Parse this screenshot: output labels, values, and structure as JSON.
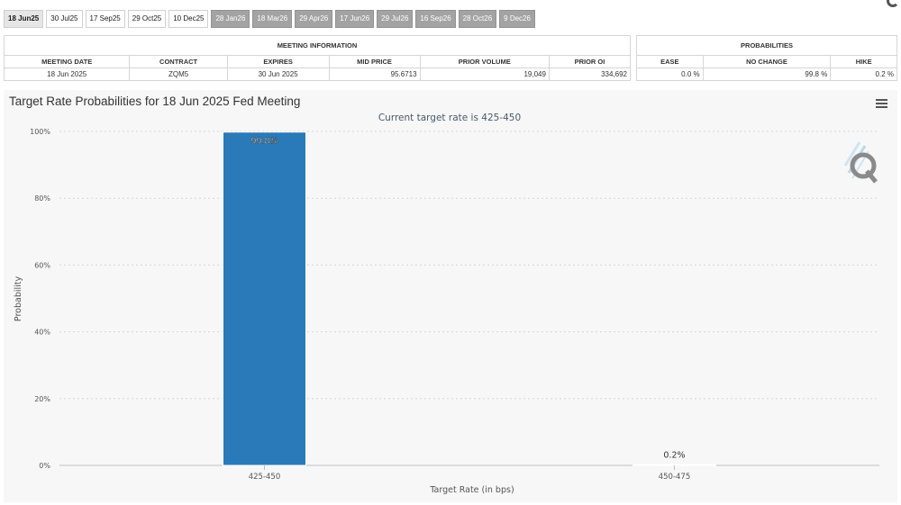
{
  "tabs": [
    {
      "label": "18 Jun25",
      "state": "active"
    },
    {
      "label": "30 Jul25",
      "state": "normal"
    },
    {
      "label": "17 Sep25",
      "state": "normal"
    },
    {
      "label": "29 Oct25",
      "state": "normal"
    },
    {
      "label": "10 Dec25",
      "state": "normal"
    },
    {
      "label": "28 Jan26",
      "state": "future"
    },
    {
      "label": "18 Mar26",
      "state": "future"
    },
    {
      "label": "29 Apr26",
      "state": "future"
    },
    {
      "label": "17 Jun26",
      "state": "future"
    },
    {
      "label": "29 Jul26",
      "state": "future"
    },
    {
      "label": "16 Sep26",
      "state": "future"
    },
    {
      "label": "28 Oct26",
      "state": "future"
    },
    {
      "label": "9 Dec26",
      "state": "future"
    }
  ],
  "meeting_info": {
    "header": "MEETING INFORMATION",
    "columns": [
      "MEETING DATE",
      "CONTRACT",
      "EXPIRES",
      "MID PRICE",
      "PRIOR VOLUME",
      "PRIOR OI"
    ],
    "row": [
      "18 Jun 2025",
      "ZQM5",
      "30 Jun 2025",
      "95.6713",
      "19,049",
      "334,692"
    ]
  },
  "probabilities": {
    "header": "PROBABILITIES",
    "columns": [
      "EASE",
      "NO CHANGE",
      "HIKE"
    ],
    "row": [
      "0.0 %",
      "99.8 %",
      "0.2 %"
    ]
  },
  "chart_data": {
    "type": "bar",
    "title": "Target Rate Probabilities for 18 Jun 2025 Fed Meeting",
    "subtitle": "Current target rate is 425-450",
    "xlabel": "Target Rate (in bps)",
    "ylabel": "Probability",
    "categories": [
      "425-450",
      "450-475"
    ],
    "values": [
      99.8,
      0.2
    ],
    "data_labels": [
      "99.8%",
      "0.2%"
    ],
    "yticks": [
      "0%",
      "20%",
      "40%",
      "60%",
      "80%",
      "100%"
    ],
    "ylim": [
      0,
      100
    ],
    "grid": true,
    "bar_color": "#2a7ab9"
  },
  "icons": {
    "menu": "hamburger-menu-icon",
    "logo": "q-logo-icon"
  }
}
